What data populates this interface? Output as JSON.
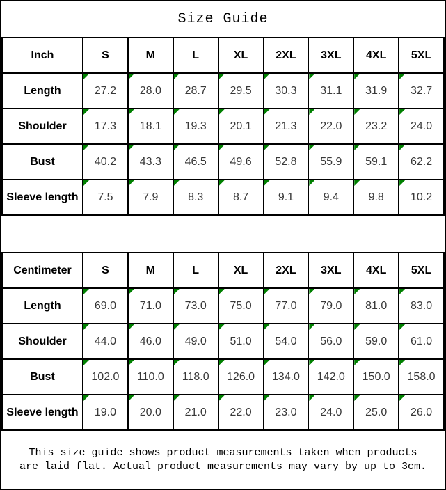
{
  "title": "Size Guide",
  "colors": {
    "marker_green": "#008000",
    "border": "#000000",
    "value_text": "#383838"
  },
  "chart_data": [
    {
      "type": "table",
      "unit": "Inch",
      "sizes": [
        "S",
        "M",
        "L",
        "XL",
        "2XL",
        "3XL",
        "4XL",
        "5XL"
      ],
      "rows": [
        {
          "label": "Length",
          "values": [
            "27.2",
            "28.0",
            "28.7",
            "29.5",
            "30.3",
            "31.1",
            "31.9",
            "32.7"
          ]
        },
        {
          "label": "Shoulder",
          "values": [
            "17.3",
            "18.1",
            "19.3",
            "20.1",
            "21.3",
            "22.0",
            "23.2",
            "24.0"
          ]
        },
        {
          "label": "Bust",
          "values": [
            "40.2",
            "43.3",
            "46.5",
            "49.6",
            "52.8",
            "55.9",
            "59.1",
            "62.2"
          ]
        },
        {
          "label": "Sleeve length",
          "values": [
            "7.5",
            "7.9",
            "8.3",
            "8.7",
            "9.1",
            "9.4",
            "9.8",
            "10.2"
          ]
        }
      ]
    },
    {
      "type": "table",
      "unit": "Centimeter",
      "sizes": [
        "S",
        "M",
        "L",
        "XL",
        "2XL",
        "3XL",
        "4XL",
        "5XL"
      ],
      "rows": [
        {
          "label": "Length",
          "values": [
            "69.0",
            "71.0",
            "73.0",
            "75.0",
            "77.0",
            "79.0",
            "81.0",
            "83.0"
          ]
        },
        {
          "label": "Shoulder",
          "values": [
            "44.0",
            "46.0",
            "49.0",
            "51.0",
            "54.0",
            "56.0",
            "59.0",
            "61.0"
          ]
        },
        {
          "label": "Bust",
          "values": [
            "102.0",
            "110.0",
            "118.0",
            "126.0",
            "134.0",
            "142.0",
            "150.0",
            "158.0"
          ]
        },
        {
          "label": "Sleeve length",
          "values": [
            "19.0",
            "20.0",
            "21.0",
            "22.0",
            "23.0",
            "24.0",
            "25.0",
            "26.0"
          ]
        }
      ]
    }
  ],
  "footer": {
    "line1": "This size guide shows product measurements taken when products",
    "line2": "are laid flat. Actual product measurements may vary by up to 3cm."
  }
}
